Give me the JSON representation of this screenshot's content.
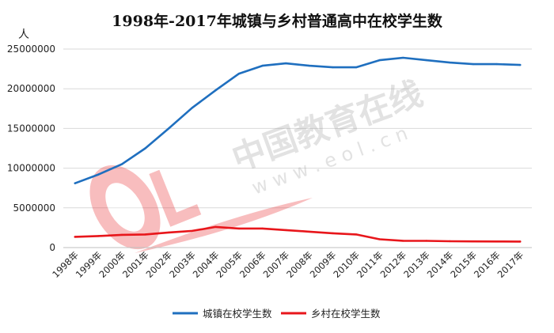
{
  "chart_data": {
    "type": "line",
    "title": "1998年-2017年城镇与乡村普通高中在校学生数",
    "ylabel": "人",
    "xlabel": "",
    "categories": [
      "1998年",
      "1999年",
      "2000年",
      "2001年",
      "2002年",
      "2003年",
      "2004年",
      "2005年",
      "2006年",
      "2007年",
      "2008年",
      "2009年",
      "2010年",
      "2011年",
      "2012年",
      "2013年",
      "2014年",
      "2015年",
      "2016年",
      "2017年"
    ],
    "ylim": [
      0,
      25000000
    ],
    "yticks": [
      "0",
      "5000000",
      "10000000",
      "15000000",
      "20000000",
      "25000000"
    ],
    "grid": true,
    "legend": "bottom",
    "series": [
      {
        "name": "城镇在校学生数",
        "color": "#1f6fbf",
        "values": [
          8100000,
          9200000,
          10500000,
          12500000,
          15000000,
          17600000,
          19800000,
          21900000,
          22900000,
          23200000,
          22900000,
          22700000,
          22700000,
          23600000,
          23900000,
          23600000,
          23300000,
          23100000,
          23100000,
          23000000
        ]
      },
      {
        "name": "乡村在校学生数",
        "color": "#e8161b",
        "values": [
          1350000,
          1450000,
          1600000,
          1650000,
          1900000,
          2100000,
          2600000,
          2400000,
          2400000,
          2200000,
          2000000,
          1800000,
          1650000,
          1050000,
          850000,
          850000,
          800000,
          780000,
          770000,
          760000
        ]
      }
    ]
  },
  "watermark": {
    "text_cn": "中国教育在线",
    "text_url": "w w w . e o l . c n"
  }
}
